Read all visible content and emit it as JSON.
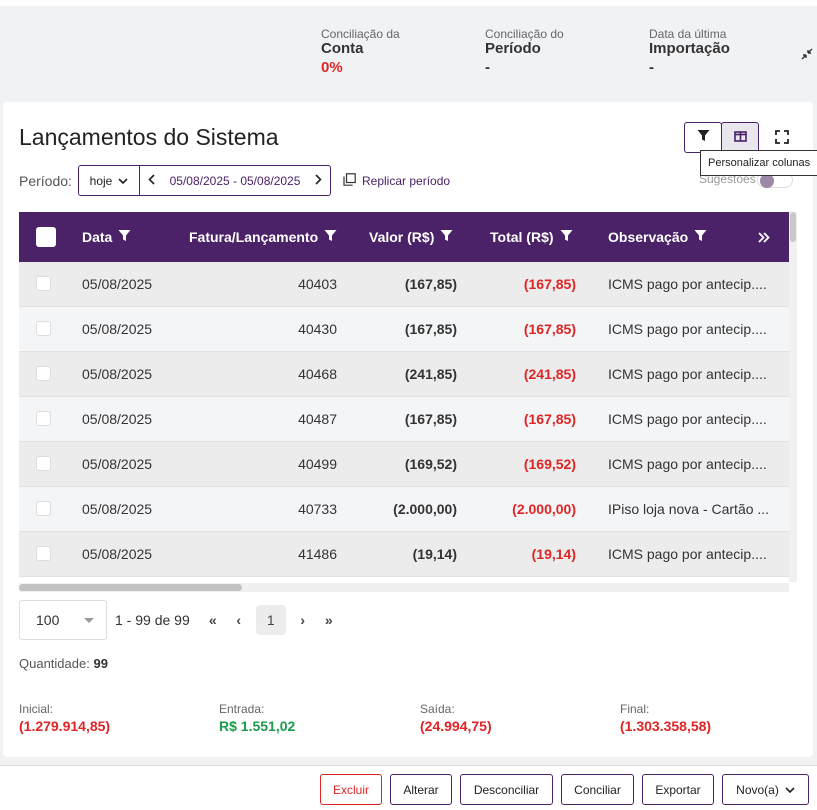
{
  "summary": {
    "conciliacao_conta": {
      "label": "Conciliação da",
      "strong": "Conta",
      "value": "0%"
    },
    "conciliacao_periodo": {
      "label": "Conciliação do",
      "strong": "Período",
      "value": "-"
    },
    "ultima_importacao": {
      "label": "Data da última",
      "strong": "Importação",
      "value": "-"
    }
  },
  "card": {
    "title": "Lançamentos do Sistema",
    "tooltip": "Personalizar colunas",
    "periodo_label": "Período:",
    "periodo_preset": "hoje",
    "periodo_range": "05/08/2025 - 05/08/2025",
    "replicar_label": "Replicar período",
    "sugestoes_label": "Sugestões"
  },
  "table": {
    "columns": [
      "Data",
      "Fatura/Lançamento",
      "Valor (R$)",
      "Total (R$)",
      "Observação"
    ],
    "rows": [
      {
        "data": "05/08/2025",
        "fatura": "40403",
        "valor": "(167,85)",
        "total": "(167,85)",
        "obs": "ICMS pago por antecip...."
      },
      {
        "data": "05/08/2025",
        "fatura": "40430",
        "valor": "(167,85)",
        "total": "(167,85)",
        "obs": "ICMS pago por antecip...."
      },
      {
        "data": "05/08/2025",
        "fatura": "40468",
        "valor": "(241,85)",
        "total": "(241,85)",
        "obs": "ICMS pago por antecip...."
      },
      {
        "data": "05/08/2025",
        "fatura": "40487",
        "valor": "(167,85)",
        "total": "(167,85)",
        "obs": "ICMS pago por antecip...."
      },
      {
        "data": "05/08/2025",
        "fatura": "40499",
        "valor": "(169,52)",
        "total": "(169,52)",
        "obs": "ICMS pago por antecip...."
      },
      {
        "data": "05/08/2025",
        "fatura": "40733",
        "valor": "(2.000,00)",
        "total": "(2.000,00)",
        "obs": "IPiso loja nova - Cartão ..."
      },
      {
        "data": "05/08/2025",
        "fatura": "41486",
        "valor": "(19,14)",
        "total": "(19,14)",
        "obs": "ICMS pago por antecip...."
      }
    ]
  },
  "pager": {
    "page_size": "100",
    "range_text": "1 - 99 de 99",
    "current_page": "1",
    "first": "«",
    "prev": "‹",
    "next": "›",
    "last": "»"
  },
  "quantidade": {
    "label": "Quantidade:",
    "value": "99"
  },
  "totals": {
    "inicial": {
      "label": "Inicial:",
      "value": "(1.279.914,85)"
    },
    "entrada": {
      "label": "Entrada:",
      "value": "R$ 1.551,02"
    },
    "saida": {
      "label": "Saída:",
      "value": "(24.994,75)"
    },
    "final": {
      "label": "Final:",
      "value": "(1.303.358,58)"
    }
  },
  "footer": {
    "excluir": "Excluir",
    "alterar": "Alterar",
    "desconciliar": "Desconciliar",
    "conciliar": "Conciliar",
    "exportar": "Exportar",
    "novo": "Novo(a)"
  },
  "colors": {
    "primary": "#4b2168",
    "negative": "#e02424",
    "positive": "#1a9a4a"
  },
  "icons": [
    "collapse-icon",
    "filter-icon",
    "columns-icon",
    "fullscreen-icon",
    "calendar-copy-icon",
    "chevron-down-icon",
    "chevron-left-icon",
    "chevron-right-icon",
    "double-chevron-right-icon"
  ]
}
